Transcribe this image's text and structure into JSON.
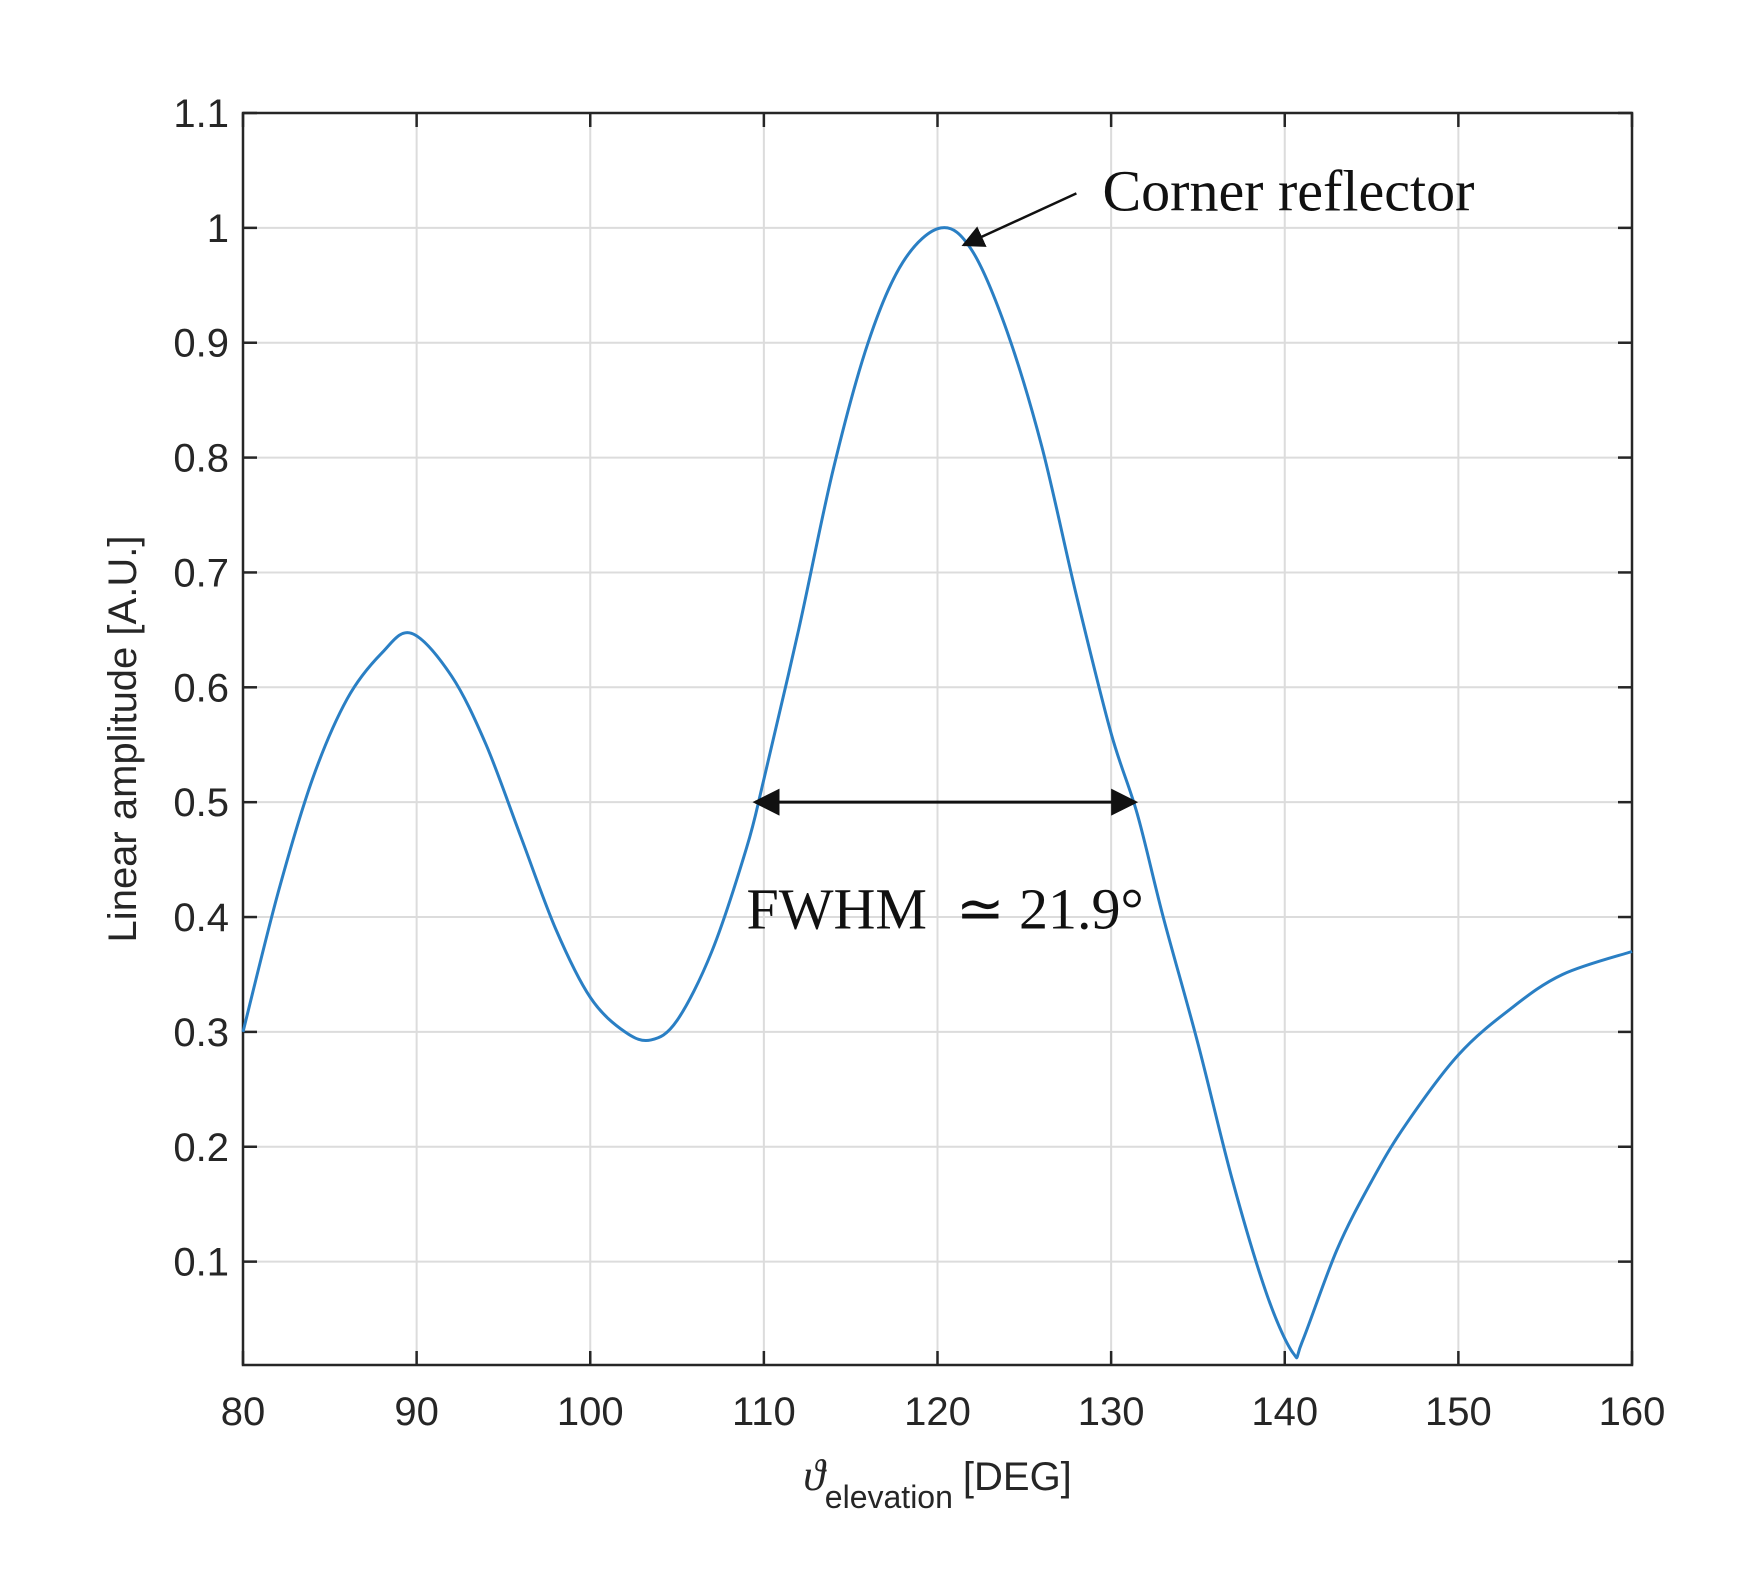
{
  "chart_data": {
    "type": "line",
    "xlabel_symbol": "ϑ",
    "xlabel_subscript": "elevation",
    "xlabel_unit": "[DEG]",
    "ylabel": "Linear amplitude [A.U.]",
    "xlim": [
      80,
      160
    ],
    "ylim": [
      0.01,
      1.1
    ],
    "xticks": [
      80,
      90,
      100,
      110,
      120,
      130,
      140,
      150,
      160
    ],
    "yticks": [
      0.1,
      0.2,
      0.3,
      0.4,
      0.5,
      0.6,
      0.7,
      0.8,
      0.9,
      1.0,
      1.1
    ],
    "ytick_labels": [
      "0.1",
      "0.2",
      "0.3",
      "0.4",
      "0.5",
      "0.6",
      "0.7",
      "0.8",
      "0.9",
      "1",
      "1.1"
    ],
    "grid": true,
    "series": [
      {
        "color": "#2a7fc4",
        "x": [
          80,
          82,
          84,
          86,
          88,
          89.7,
          92,
          94,
          96,
          98,
          100,
          102,
          103.5,
          105,
          107,
          109,
          110,
          112,
          114,
          116,
          118,
          120.2,
          122,
          124,
          126,
          128,
          130,
          131.5,
          133,
          135,
          137,
          139,
          140.5,
          141,
          143,
          145,
          147,
          150,
          153,
          156,
          160
        ],
        "y": [
          0.3,
          0.42,
          0.52,
          0.59,
          0.63,
          0.647,
          0.61,
          0.55,
          0.47,
          0.39,
          0.33,
          0.3,
          0.293,
          0.31,
          0.37,
          0.46,
          0.52,
          0.65,
          0.79,
          0.9,
          0.97,
          1.0,
          0.98,
          0.91,
          0.81,
          0.68,
          0.56,
          0.49,
          0.4,
          0.29,
          0.17,
          0.07,
          0.02,
          0.03,
          0.11,
          0.17,
          0.22,
          0.28,
          0.32,
          0.35,
          0.37
        ]
      }
    ],
    "annotations": [
      {
        "text": "Corner reflector",
        "arrow_to": [
          121.5,
          0.985
        ],
        "arrow_from": [
          128,
          1.03
        ],
        "text_at": [
          129.5,
          1.015
        ]
      },
      {
        "text": "FWHM  ≃ 21.9°",
        "double_arrow": [
          [
            109.5,
            0.5
          ],
          [
            131.4,
            0.5
          ]
        ],
        "text_at": [
          109,
          0.39
        ]
      }
    ]
  }
}
